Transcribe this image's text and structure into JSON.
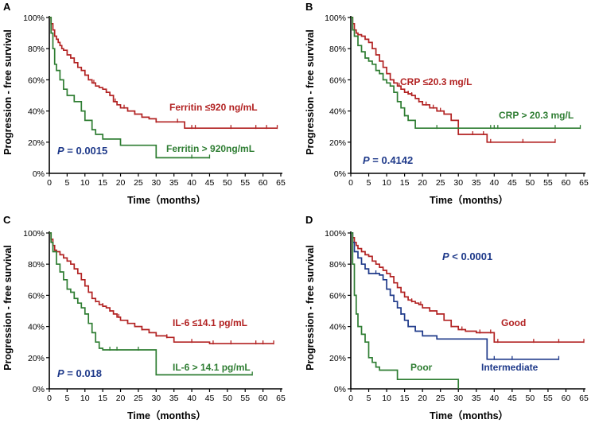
{
  "chart_data": [
    {
      "type": "line",
      "panel_label": "A",
      "xlabel": "Time（months）",
      "ylabel": "Progression - free survival",
      "xlim": [
        0,
        65
      ],
      "ylim": [
        0,
        100
      ],
      "xticks": [
        "0",
        "5",
        "10",
        "15",
        "20",
        "25",
        "30",
        "35",
        "40",
        "45",
        "50",
        "55",
        "60",
        "65"
      ],
      "yticks": [
        "0%",
        "20%",
        "40%",
        "60%",
        "80%",
        "100%"
      ],
      "p_value": {
        "prefix": "P",
        "text": " = 0.0015",
        "color": "#1f3a8a"
      },
      "series": [
        {
          "name": "Ferritin ≤920 ng/mL",
          "color": "#b22222",
          "x": [
            0,
            0.5,
            1,
            1.5,
            2,
            2.5,
            3,
            3.5,
            4,
            5,
            6,
            7,
            8,
            9,
            10,
            11,
            12,
            13,
            14,
            15,
            16,
            17,
            18,
            19,
            20,
            22,
            24,
            26,
            28,
            30,
            32,
            35,
            38,
            40,
            42,
            45,
            50,
            55,
            60,
            64
          ],
          "y": [
            100,
            96,
            92,
            88,
            86,
            84,
            82,
            80,
            79,
            76,
            74,
            71,
            68,
            66,
            63,
            60,
            58,
            56,
            55,
            54,
            52,
            50,
            46,
            44,
            42,
            40,
            38,
            36,
            35,
            33,
            33,
            33,
            29,
            29,
            29,
            29,
            29,
            29,
            29,
            29
          ],
          "censor_x": [
            12.5,
            16,
            18.5,
            21,
            24,
            30,
            36,
            40,
            41,
            51,
            58,
            61,
            64
          ]
        },
        {
          "name": "Ferritin > 920ng/mL",
          "color": "#2e7d32",
          "x": [
            0,
            0.5,
            1,
            1.5,
            2,
            3,
            4,
            5,
            7,
            9,
            10,
            12,
            13,
            15,
            20,
            25,
            30,
            35,
            40,
            45
          ],
          "y": [
            100,
            90,
            80,
            70,
            66,
            60,
            54,
            50,
            46,
            40,
            34,
            28,
            25,
            22,
            18,
            18,
            10,
            10,
            10,
            10
          ],
          "censor_x": [
            40,
            45
          ]
        }
      ]
    },
    {
      "type": "line",
      "panel_label": "B",
      "xlabel": "Time（months）",
      "ylabel": "Progression - free survival",
      "xlim": [
        0,
        65
      ],
      "ylim": [
        0,
        100
      ],
      "xticks": [
        "0",
        "5",
        "10",
        "15",
        "20",
        "25",
        "30",
        "35",
        "40",
        "45",
        "50",
        "55",
        "60",
        "65"
      ],
      "yticks": [
        "0%",
        "20%",
        "40%",
        "60%",
        "80%",
        "100%"
      ],
      "p_value": {
        "prefix": "P",
        "text": " = 0.4142",
        "color": "#1f3a8a"
      },
      "series": [
        {
          "name": "CRP ≤20.3 mg/L",
          "color": "#b22222",
          "x": [
            0,
            0.5,
            1,
            1.5,
            2,
            3,
            4,
            5,
            6,
            7,
            8,
            9,
            10,
            11,
            12,
            13,
            14,
            15,
            16,
            17,
            18,
            19,
            20,
            22,
            24,
            26,
            28,
            30,
            33,
            36,
            38,
            45,
            50,
            57
          ],
          "y": [
            100,
            96,
            92,
            90,
            89,
            88,
            86,
            84,
            80,
            76,
            72,
            68,
            64,
            60,
            58,
            56,
            54,
            52,
            51,
            50,
            48,
            46,
            44,
            42,
            40,
            38,
            34,
            25,
            25,
            25,
            20,
            20,
            20,
            20
          ],
          "censor_x": [
            12,
            13.5,
            16,
            17,
            19,
            21,
            23,
            25,
            30,
            34,
            37,
            39,
            48,
            57
          ]
        },
        {
          "name": "CRP > 20.3 mg/L",
          "color": "#2e7d32",
          "x": [
            0,
            0.5,
            1,
            2,
            3,
            4,
            5,
            6,
            7,
            8,
            9,
            10,
            11,
            12,
            13,
            14,
            15,
            16,
            18,
            20,
            25,
            30,
            40,
            50,
            60,
            64
          ],
          "y": [
            100,
            92,
            88,
            82,
            78,
            74,
            72,
            70,
            66,
            64,
            60,
            58,
            56,
            52,
            46,
            42,
            37,
            34,
            29,
            29,
            29,
            29,
            29,
            29,
            29,
            29
          ],
          "censor_x": [
            15,
            24,
            39,
            40,
            41,
            57,
            64
          ]
        }
      ]
    },
    {
      "type": "line",
      "panel_label": "C",
      "xlabel": "Time（months）",
      "ylabel": "Progression - free survival",
      "xlim": [
        0,
        65
      ],
      "ylim": [
        0,
        100
      ],
      "xticks": [
        "0",
        "5",
        "10",
        "15",
        "20",
        "25",
        "30",
        "35",
        "40",
        "45",
        "50",
        "55",
        "60",
        "65"
      ],
      "yticks": [
        "0%",
        "20%",
        "40%",
        "60%",
        "80%",
        "100%"
      ],
      "p_value": {
        "prefix": "P",
        "text": " = 0.018",
        "color": "#1f3a8a"
      },
      "series": [
        {
          "name": "IL-6 ≤14.1 pg/mL",
          "color": "#b22222",
          "x": [
            0,
            0.5,
            1,
            1.5,
            2,
            3,
            4,
            5,
            6,
            7,
            8,
            9,
            10,
            11,
            12,
            13,
            14,
            15,
            16,
            17,
            18,
            19,
            20,
            22,
            24,
            26,
            28,
            30,
            33,
            35,
            40,
            45,
            50,
            55,
            60,
            63
          ],
          "y": [
            100,
            96,
            92,
            89,
            88,
            86,
            84,
            82,
            80,
            77,
            74,
            70,
            66,
            62,
            58,
            56,
            54,
            53,
            52,
            50,
            48,
            46,
            44,
            42,
            40,
            38,
            36,
            34,
            33,
            30,
            30,
            29,
            29,
            29,
            29,
            29
          ],
          "censor_x": [
            13,
            15,
            17,
            19.5,
            22,
            26,
            30,
            33,
            40,
            46,
            51,
            58,
            60,
            63
          ]
        },
        {
          "name": "IL-6 > 14.1 pg/mL",
          "color": "#2e7d32",
          "x": [
            0,
            0.5,
            1,
            2,
            3,
            4,
            5,
            6,
            7,
            8,
            9,
            10,
            11,
            12,
            13,
            14,
            15,
            20,
            25,
            30,
            40,
            50,
            57
          ],
          "y": [
            100,
            94,
            88,
            80,
            75,
            70,
            64,
            62,
            58,
            55,
            52,
            48,
            42,
            36,
            30,
            26,
            25,
            25,
            25,
            9,
            9,
            9,
            9
          ],
          "censor_x": [
            17,
            19,
            25,
            57
          ]
        }
      ]
    },
    {
      "type": "line",
      "panel_label": "D",
      "xlabel": "Time（months）",
      "ylabel": "Progression - free survival",
      "xlim": [
        0,
        65
      ],
      "ylim": [
        0,
        100
      ],
      "xticks": [
        "0",
        "5",
        "10",
        "15",
        "20",
        "25",
        "30",
        "35",
        "40",
        "45",
        "50",
        "55",
        "60",
        "65"
      ],
      "yticks": [
        "0%",
        "20%",
        "40%",
        "60%",
        "80%",
        "100%"
      ],
      "p_value": {
        "prefix": "P",
        "text": " < 0.0001",
        "color": "#1f3a8a"
      },
      "series": [
        {
          "name": "Good",
          "color": "#b22222",
          "x": [
            0,
            0.5,
            1,
            1.5,
            2,
            3,
            4,
            5,
            6,
            7,
            8,
            9,
            10,
            11,
            12,
            13,
            14,
            15,
            16,
            17,
            18,
            19,
            20,
            22,
            24,
            26,
            28,
            30,
            32,
            35,
            40,
            45,
            50,
            55,
            60,
            65
          ],
          "y": [
            100,
            97,
            94,
            92,
            90,
            88,
            86,
            85,
            82,
            80,
            78,
            76,
            74,
            72,
            68,
            65,
            62,
            59,
            57,
            56,
            55,
            54,
            52,
            50,
            48,
            44,
            40,
            38,
            37,
            36,
            30,
            30,
            30,
            30,
            30,
            30
          ],
          "censor_x": [
            17,
            19.5,
            22,
            24,
            28,
            31,
            36,
            39,
            41,
            51,
            58,
            65
          ]
        },
        {
          "name": "Intermediate",
          "color": "#1f3a8a",
          "x": [
            0,
            0.5,
            1,
            2,
            3,
            4,
            5,
            6,
            7,
            8,
            9,
            10,
            11,
            12,
            13,
            14,
            15,
            16,
            18,
            20,
            24,
            30,
            35,
            38,
            40,
            50,
            58
          ],
          "y": [
            100,
            94,
            88,
            84,
            80,
            77,
            74,
            74,
            74,
            73,
            70,
            64,
            60,
            56,
            52,
            48,
            44,
            40,
            37,
            34,
            32,
            32,
            32,
            19,
            19,
            19,
            19
          ],
          "censor_x": [
            5,
            7,
            14,
            16,
            40,
            45,
            58
          ]
        },
        {
          "name": "Poor",
          "color": "#2e7d32",
          "x": [
            0,
            0.5,
            1,
            1.5,
            2,
            3,
            4,
            5,
            6,
            7,
            8,
            10,
            12,
            13,
            14,
            15,
            20,
            25,
            29,
            30
          ],
          "y": [
            100,
            80,
            60,
            48,
            40,
            35,
            30,
            20,
            17,
            14,
            12,
            12,
            12,
            6,
            6,
            6,
            6,
            6,
            6,
            0
          ],
          "censor_x": []
        }
      ]
    }
  ]
}
